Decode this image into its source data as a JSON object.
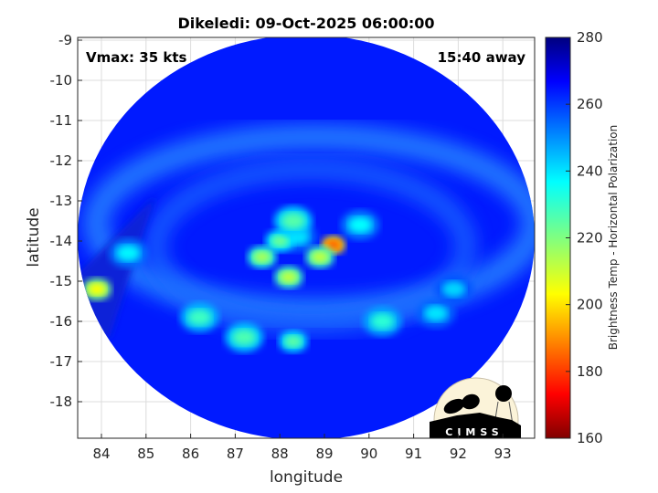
{
  "chart_data": {
    "type": "heatmap",
    "title": "Dikeledi: 09-Oct-2025 06:00:00",
    "xlabel": "longitude",
    "ylabel": "latitude",
    "xlim": [
      83.4,
      93.7
    ],
    "ylim": [
      -18.9,
      -8.9
    ],
    "x_ticks": [
      "84",
      "85",
      "86",
      "87",
      "88",
      "89",
      "90",
      "91",
      "92",
      "93"
    ],
    "y_ticks": [
      "-9",
      "-10",
      "-11",
      "-12",
      "-13",
      "-14",
      "-15",
      "-16",
      "-17",
      "-18"
    ],
    "grid": true,
    "annotations": {
      "vmax": "Vmax: 35 kts",
      "time_offset": "15:40 away"
    },
    "colorbar": {
      "label": "Brightness Temp - Horizontal Polarization",
      "range": [
        160,
        280
      ],
      "ticks": [
        "160",
        "180",
        "200",
        "220",
        "240",
        "260",
        "280"
      ],
      "colormap": "jet"
    },
    "swath_background_temp": 262,
    "features": [
      {
        "lon": 88.4,
        "lat": -13.9,
        "temp": 238
      },
      {
        "lon": 88.0,
        "lat": -14.0,
        "temp": 222
      },
      {
        "lon": 87.6,
        "lat": -14.4,
        "temp": 215
      },
      {
        "lon": 88.3,
        "lat": -13.5,
        "temp": 225
      },
      {
        "lon": 89.2,
        "lat": -14.1,
        "temp": 185
      },
      {
        "lon": 88.9,
        "lat": -14.4,
        "temp": 212
      },
      {
        "lon": 88.2,
        "lat": -14.9,
        "temp": 212
      },
      {
        "lon": 89.8,
        "lat": -13.6,
        "temp": 235
      },
      {
        "lon": 84.6,
        "lat": -14.3,
        "temp": 236
      },
      {
        "lon": 83.9,
        "lat": -15.2,
        "temp": 205
      },
      {
        "lon": 86.2,
        "lat": -15.9,
        "temp": 228
      },
      {
        "lon": 87.2,
        "lat": -16.4,
        "temp": 226
      },
      {
        "lon": 88.3,
        "lat": -16.5,
        "temp": 224
      },
      {
        "lon": 90.3,
        "lat": -16.0,
        "temp": 230
      },
      {
        "lon": 91.5,
        "lat": -15.8,
        "temp": 238
      },
      {
        "lon": 91.9,
        "lat": -15.2,
        "temp": 240
      }
    ]
  },
  "logo": {
    "text": "CIMSS"
  }
}
